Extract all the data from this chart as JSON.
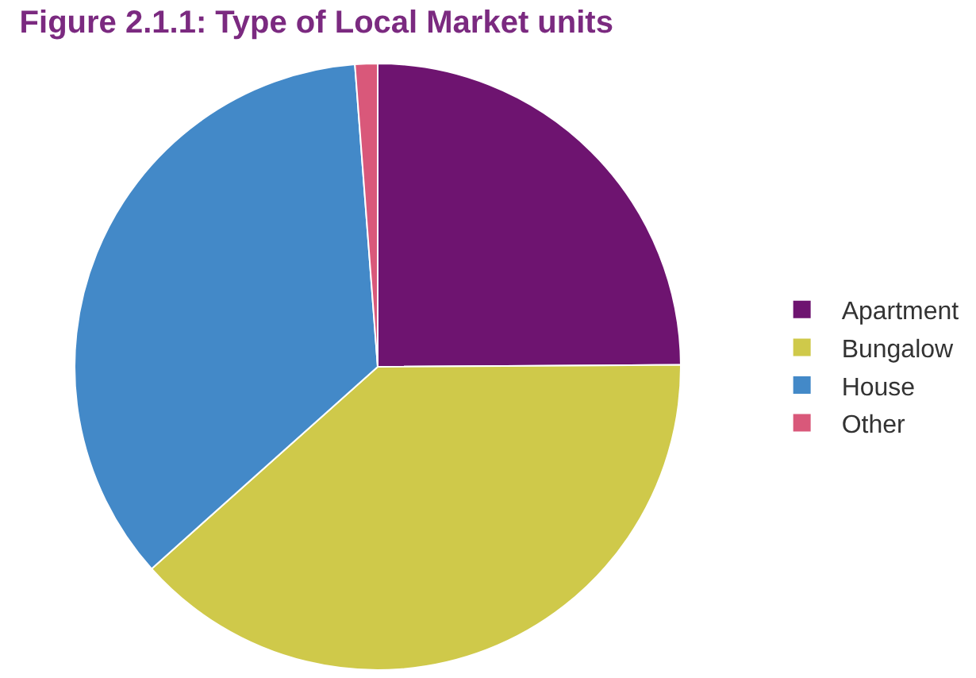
{
  "chart_data": {
    "type": "pie",
    "title": "Figure 2.1.1: Type of Local Market units",
    "categories": [
      "Apartment",
      "Bungalow",
      "House",
      "Other"
    ],
    "values": [
      24.9,
      38.5,
      35.4,
      1.2
    ],
    "colors": [
      "#6e1470",
      "#cfc94a",
      "#4389c8",
      "#d9587a"
    ],
    "legend": "right"
  }
}
